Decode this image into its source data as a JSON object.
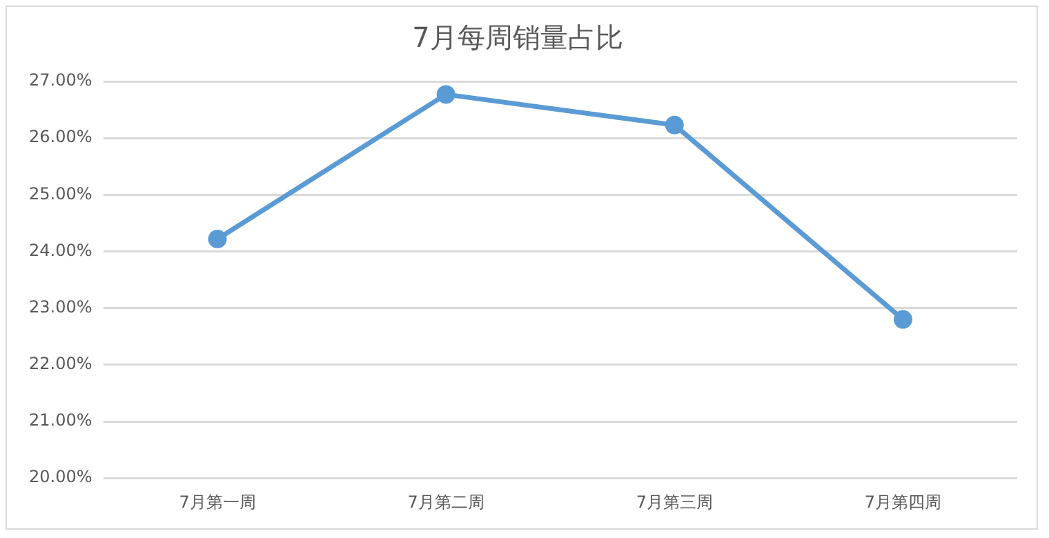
{
  "chart_data": {
    "type": "line",
    "title": "7月每周销量占比",
    "categories": [
      "7月第一周",
      "7月第二周",
      "7月第三周",
      "7月第四周"
    ],
    "series": [
      {
        "color": "#5b9bd5",
        "values": [
          24.22,
          26.77,
          26.23,
          22.8
        ]
      }
    ],
    "ylim": [
      20,
      27
    ],
    "yticks": [
      {
        "value": 20,
        "label": "20.00%"
      },
      {
        "value": 21,
        "label": "21.00%"
      },
      {
        "value": 22,
        "label": "22.00%"
      },
      {
        "value": 23,
        "label": "23.00%"
      },
      {
        "value": 24,
        "label": "24.00%"
      },
      {
        "value": 25,
        "label": "25.00%"
      },
      {
        "value": 26,
        "label": "26.00%"
      },
      {
        "value": 27,
        "label": "27.00%"
      }
    ],
    "grid": "y",
    "legend": false,
    "marker": "circle",
    "line_style": "solid"
  }
}
